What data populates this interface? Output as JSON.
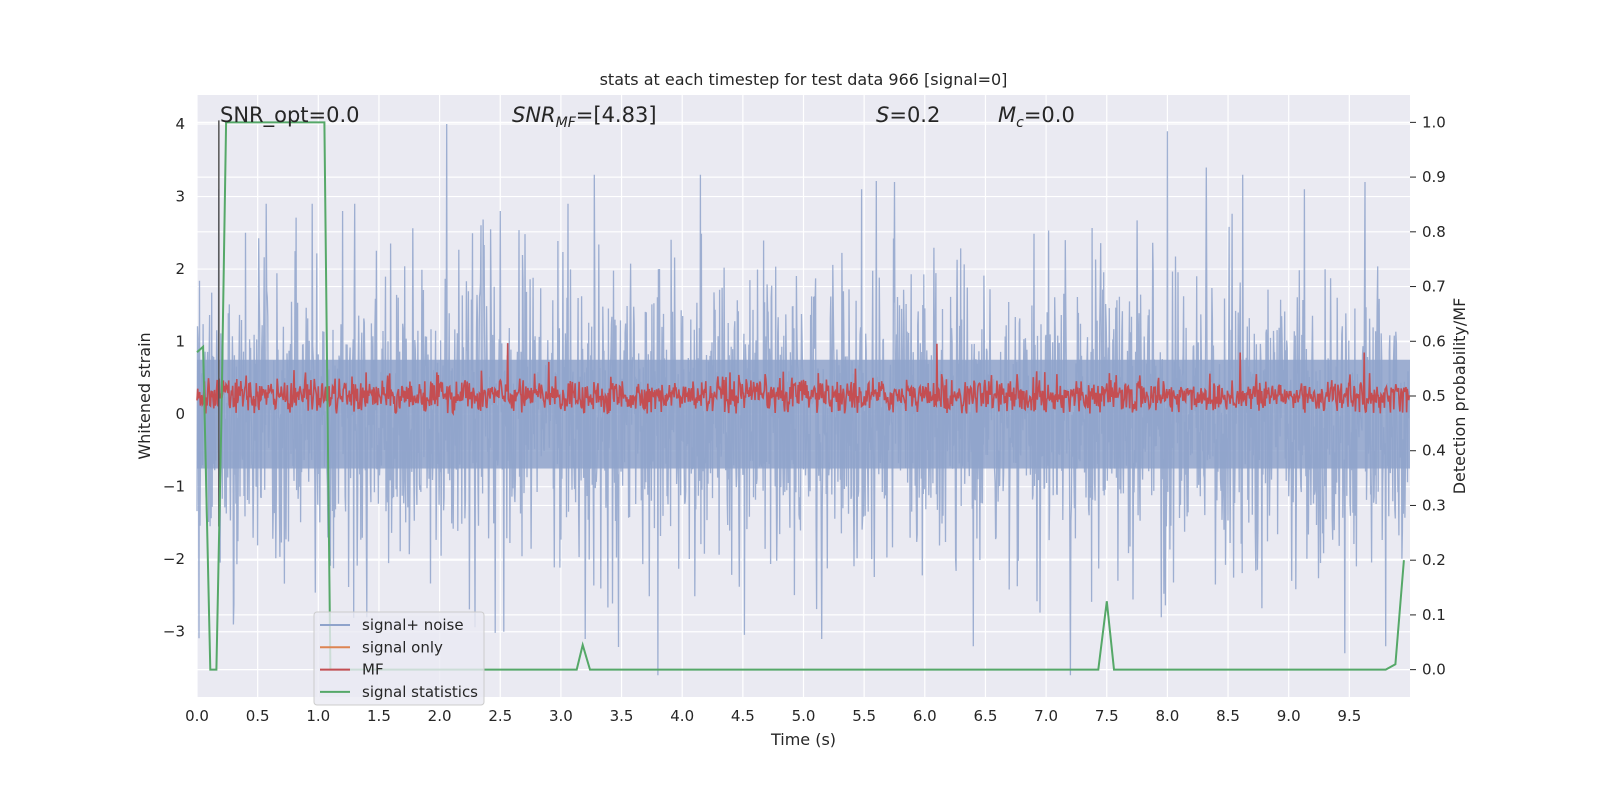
{
  "chart_data": {
    "type": "line",
    "title": "stats at each timestep for test data 966 [signal=0]",
    "xlabel": "Time (s)",
    "ylabel_left": "Whitened strain",
    "ylabel_right": "Detection probability/MF",
    "xlim": [
      0.0,
      10.0
    ],
    "ylim_left": [
      -3.9,
      4.4
    ],
    "ylim_right": [
      -0.05,
      1.05
    ],
    "xticks": [
      "0.0",
      "0.5",
      "1.0",
      "1.5",
      "2.0",
      "2.5",
      "3.0",
      "3.5",
      "4.0",
      "4.5",
      "5.0",
      "5.5",
      "6.0",
      "6.5",
      "7.0",
      "7.5",
      "8.0",
      "8.5",
      "9.0",
      "9.5"
    ],
    "xtick_values": [
      0.0,
      0.5,
      1.0,
      1.5,
      2.0,
      2.5,
      3.0,
      3.5,
      4.0,
      4.5,
      5.0,
      5.5,
      6.0,
      6.5,
      7.0,
      7.5,
      8.0,
      8.5,
      9.0,
      9.5
    ],
    "yticks_left": [
      "4",
      "3",
      "2",
      "1",
      "0",
      "−1",
      "−2",
      "−3"
    ],
    "ytick_values_left": [
      4,
      3,
      2,
      1,
      0,
      -1,
      -2,
      -3
    ],
    "yticks_right": [
      "1.0",
      "0.9",
      "0.8",
      "0.7",
      "0.6",
      "0.5",
      "0.4",
      "0.3",
      "0.2",
      "0.1",
      "0.0"
    ],
    "ytick_values_right": [
      1.0,
      0.9,
      0.8,
      0.7,
      0.6,
      0.5,
      0.4,
      0.3,
      0.2,
      0.1,
      0.0
    ],
    "grid": true,
    "legend_position": "lower-left",
    "annotations": {
      "snr_opt": "SNR_opt=0.0",
      "snr_mf_main": "SNR",
      "snr_mf_sub": "MF",
      "snr_mf_value": "=[4.83]",
      "s_main": "S",
      "s_value": "=0.2",
      "mc_main": "M",
      "mc_sub": "c",
      "mc_value": "=0.0"
    },
    "series": [
      {
        "name": "signal+ noise",
        "color": "#8fa3cb",
        "axis": "left",
        "description_peaks": {
          "x": [
            0.18,
            0.4,
            0.57,
            0.95,
            1.2,
            1.3,
            2.06,
            2.5,
            3.06,
            4.15,
            5.48,
            5.75,
            7.16,
            8.0,
            8.32,
            8.62,
            9.13,
            9.63
          ],
          "y": [
            3.1,
            2.5,
            2.9,
            2.9,
            2.8,
            2.9,
            4.0,
            2.8,
            2.9,
            3.3,
            3.1,
            3.2,
            2.4,
            3.9,
            3.4,
            3.3,
            3.1,
            3.2
          ]
        },
        "description_troughs": {
          "x": [
            0.3,
            1.4,
            2.53,
            3.2,
            3.8,
            5.15,
            6.4,
            7.2,
            7.95,
            9.8
          ],
          "y": [
            -2.9,
            -2.8,
            -3.0,
            -3.1,
            -3.6,
            -3.1,
            -3.2,
            -3.6,
            -2.8,
            -3.2
          ]
        },
        "amplitude_sigma": 1.3
      },
      {
        "name": "signal only",
        "color": "#dd8452",
        "axis": "left",
        "x": [
          0.0,
          10.0
        ],
        "y": [
          0.0,
          0.0
        ]
      },
      {
        "name": "MF",
        "color": "#c44e52",
        "axis": "left",
        "baseline": 0.25,
        "spikes_x": [
          2.56,
          6.1,
          2.9,
          8.6,
          9.62
        ],
        "spikes_y": [
          0.98,
          0.97,
          0.72,
          0.85,
          0.85
        ]
      },
      {
        "name": "signal statistics",
        "color": "#55a868",
        "axis": "right",
        "x": [
          0.0,
          0.05,
          0.11,
          0.16,
          0.2,
          0.24,
          0.3,
          0.5,
          1.0,
          1.05,
          1.1,
          1.2,
          1.5,
          2.0,
          2.5,
          3.0,
          3.13,
          3.18,
          3.24,
          3.5,
          4.0,
          5.0,
          6.0,
          7.0,
          7.43,
          7.5,
          7.56,
          8.0,
          9.0,
          9.8,
          9.88,
          9.95
        ],
        "y": [
          0.58,
          0.59,
          0.0,
          0.0,
          0.45,
          1.0,
          1.0,
          1.0,
          1.0,
          1.0,
          0.0,
          0.0,
          0.0,
          0.0,
          0.0,
          0.0,
          0.0,
          0.045,
          0.0,
          0.0,
          0.0,
          0.0,
          0.0,
          0.0,
          0.0,
          0.125,
          0.0,
          0.0,
          0.0,
          0.0,
          0.01,
          0.2
        ]
      }
    ],
    "marker_line": {
      "x": 0.18,
      "color": "#555555"
    }
  },
  "legend": {
    "items": [
      {
        "label": "signal+ noise",
        "color": "#8fa3cb"
      },
      {
        "label": "signal only",
        "color": "#dd8452"
      },
      {
        "label": "MF",
        "color": "#c44e52"
      },
      {
        "label": "signal statistics",
        "color": "#55a868"
      }
    ]
  }
}
